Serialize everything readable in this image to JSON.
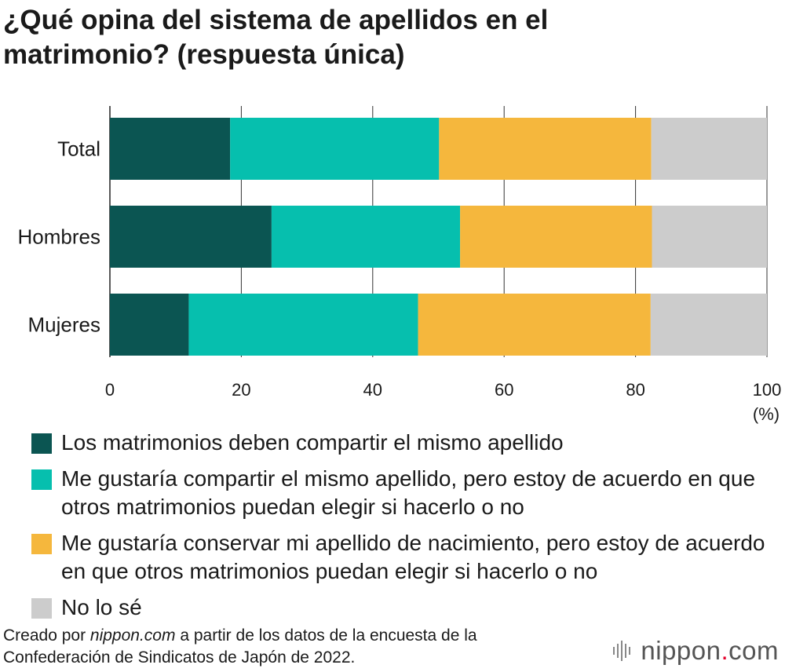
{
  "header": {
    "title": "¿Qué opina del sistema de apellidos en el matrimonio? (respuesta única)"
  },
  "chart_data": {
    "type": "bar",
    "orientation": "horizontal",
    "stacked": true,
    "categories": [
      "Total",
      "Hombres",
      "Mujeres"
    ],
    "series": [
      {
        "name": "Los matrimonios deben compartir el mismo apellido",
        "color": "#0b5552",
        "values": [
          18.3,
          24.6,
          12.0
        ]
      },
      {
        "name": "Me gustaría compartir el mismo apellido, pero estoy de acuerdo en que otros matrimonios puedan elegir si hacerlo o no",
        "color": "#06bfae",
        "values": [
          31.8,
          28.7,
          34.9
        ]
      },
      {
        "name": "Me gustaría conservar mi apellido de nacimiento, pero estoy de acuerdo en que otros matrimonios puedan elegir si hacerlo o no",
        "color": "#f5b73d",
        "values": [
          32.3,
          29.2,
          35.4
        ]
      },
      {
        "name": "No lo sé",
        "color": "#cccccc",
        "values": [
          17.6,
          17.5,
          17.7
        ]
      }
    ],
    "xlim": [
      0,
      100
    ],
    "xticks": [
      "0",
      "20",
      "40",
      "60",
      "80",
      "100"
    ],
    "xunit": "(%)",
    "grid": true,
    "legend_position": "bottom"
  },
  "footer": {
    "source_prefix": "Creado por ",
    "source_site": "nippon.com",
    "source_suffix": " a partir de los datos de la encuesta de la Confederación de Sindicatos de Japón de 2022."
  },
  "brand": {
    "name": "nippon",
    "dot": ".",
    "tld": "com"
  }
}
